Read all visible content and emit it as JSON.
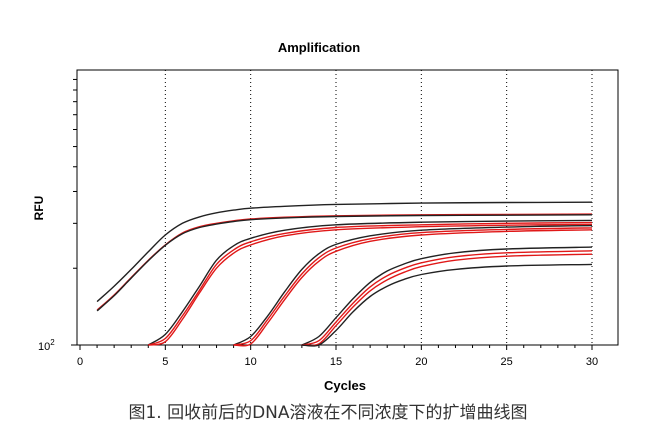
{
  "chart_data": {
    "type": "line",
    "title": "Amplification",
    "xlabel": "Cycles",
    "ylabel": "RFU",
    "ylabel_tick": "10",
    "ylabel_tick_exp": "2",
    "xlim": [
      0,
      32
    ],
    "xticks": [
      0,
      5,
      10,
      15,
      20,
      25,
      30
    ],
    "yscale": "log",
    "ylim": [
      100,
      1300
    ],
    "grid": "vertical dotted at x ticks",
    "legend": "none",
    "series": [
      {
        "color": "#222222",
        "x": [
          1,
          2,
          3,
          4,
          5,
          6,
          7,
          8,
          9,
          10,
          12,
          15,
          20,
          25,
          30
        ],
        "y": [
          148,
          170,
          198,
          232,
          270,
          300,
          318,
          330,
          338,
          344,
          350,
          356,
          360,
          362,
          363
        ]
      },
      {
        "color": "#e01818",
        "x": [
          1,
          2,
          3,
          4,
          5,
          6,
          7,
          8,
          9,
          10,
          12,
          15,
          20,
          25,
          30
        ],
        "y": [
          137,
          157,
          184,
          215,
          247,
          275,
          291,
          300,
          307,
          312,
          317,
          321,
          324,
          325,
          326
        ]
      },
      {
        "color": "#222222",
        "x": [
          1,
          2,
          3,
          4,
          5,
          6,
          7,
          8,
          9,
          10,
          12,
          15,
          20,
          25,
          30
        ],
        "y": [
          136,
          156,
          183,
          214,
          246,
          273,
          289,
          298,
          305,
          310,
          315,
          319,
          322,
          323,
          324
        ]
      },
      {
        "color": "#222222",
        "x": [
          4,
          5,
          6,
          7,
          8,
          9,
          10,
          12,
          15,
          20,
          25,
          30
        ],
        "y": [
          95,
          110,
          135,
          170,
          215,
          245,
          262,
          282,
          296,
          303,
          306,
          308
        ]
      },
      {
        "color": "#e01818",
        "x": [
          4,
          5,
          6,
          7,
          8,
          9,
          10,
          12,
          15,
          20,
          25,
          30
        ],
        "y": [
          92,
          106,
          130,
          164,
          207,
          236,
          254,
          274,
          289,
          296,
          300,
          302
        ]
      },
      {
        "color": "#e01818",
        "x": [
          4,
          5,
          6,
          7,
          8,
          9,
          10,
          12,
          15,
          20,
          25,
          30
        ],
        "y": [
          90,
          103,
          126,
          160,
          200,
          229,
          247,
          268,
          283,
          291,
          295,
          297
        ]
      },
      {
        "color": "#222222",
        "x": [
          9,
          10,
          11,
          12,
          13,
          14,
          15,
          17,
          20,
          25,
          30
        ],
        "y": [
          95,
          108,
          130,
          162,
          198,
          228,
          248,
          268,
          282,
          290,
          294
        ]
      },
      {
        "color": "#e01818",
        "x": [
          9,
          10,
          11,
          12,
          13,
          14,
          15,
          17,
          20,
          25,
          30
        ],
        "y": [
          92,
          104,
          126,
          156,
          190,
          220,
          240,
          261,
          276,
          284,
          288
        ]
      },
      {
        "color": "#e01818",
        "x": [
          9,
          10,
          11,
          12,
          13,
          14,
          15,
          17,
          20,
          25,
          30
        ],
        "y": [
          90,
          101,
          122,
          151,
          184,
          213,
          233,
          255,
          270,
          279,
          283
        ]
      },
      {
        "color": "#222222",
        "x": [
          13,
          14,
          15,
          16,
          17,
          18,
          19,
          20,
          22,
          25,
          30
        ],
        "y": [
          95,
          108,
          128,
          152,
          176,
          195,
          208,
          218,
          230,
          238,
          242
        ]
      },
      {
        "color": "#e01818",
        "x": [
          13,
          14,
          15,
          16,
          17,
          18,
          19,
          20,
          22,
          25,
          30
        ],
        "y": [
          92,
          104,
          123,
          146,
          169,
          187,
          200,
          210,
          222,
          230,
          234
        ]
      },
      {
        "color": "#e01818",
        "x": [
          13,
          14,
          15,
          16,
          17,
          18,
          19,
          20,
          22,
          25,
          30
        ],
        "y": [
          90,
          101,
          119,
          141,
          163,
          180,
          193,
          203,
          215,
          223,
          227
        ]
      },
      {
        "color": "#222222",
        "x": [
          13,
          14,
          15,
          16,
          17,
          18,
          19,
          20,
          22,
          25,
          30
        ],
        "y": [
          89,
          98,
          114,
          135,
          155,
          170,
          181,
          189,
          198,
          204,
          207
        ]
      }
    ]
  },
  "caption": "图1. 回收前后的DNA溶液在不同浓度下的扩增曲线图"
}
